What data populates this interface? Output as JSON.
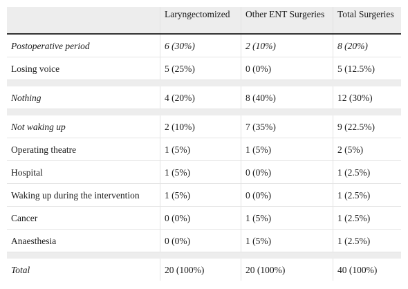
{
  "table": {
    "headers": [
      "",
      "Laryngectomized",
      "Other ENT Surgeries",
      "Total Surgeries"
    ],
    "rows": [
      {
        "kind": "data",
        "italic": true,
        "cells": [
          "Postoperative period",
          "6 (30%)",
          "2 (10%)",
          "8 (20%)"
        ]
      },
      {
        "kind": "data",
        "italic": false,
        "cells": [
          "Losing voice",
          "5 (25%)",
          "0 (0%)",
          "5 (12.5%)"
        ]
      },
      {
        "kind": "gap"
      },
      {
        "kind": "data",
        "italic": true,
        "cells": [
          "Nothing",
          "4 (20%)",
          "8 (40%)",
          "12 (30%)"
        ]
      },
      {
        "kind": "gap"
      },
      {
        "kind": "data",
        "italic": true,
        "cells": [
          "Not waking up",
          "2 (10%)",
          "7 (35%)",
          "9 (22.5%)"
        ]
      },
      {
        "kind": "data",
        "italic": false,
        "cells": [
          "Operating theatre",
          "1 (5%)",
          "1 (5%)",
          "2 (5%)"
        ]
      },
      {
        "kind": "data",
        "italic": false,
        "cells": [
          "Hospital",
          "1 (5%)",
          "0 (0%)",
          "1 (2.5%)"
        ]
      },
      {
        "kind": "data",
        "italic": false,
        "cells": [
          "Waking up during the intervention",
          "1 (5%)",
          "0 (0%)",
          "1 (2.5%)"
        ]
      },
      {
        "kind": "data",
        "italic": false,
        "cells": [
          "Cancer",
          "0 (0%)",
          "1 (5%)",
          "1 (2.5%)"
        ]
      },
      {
        "kind": "data",
        "italic": false,
        "cells": [
          "Anaesthesia",
          "0 (0%)",
          "1 (5%)",
          "1 (2.5%)"
        ]
      },
      {
        "kind": "gap"
      },
      {
        "kind": "data",
        "italic": true,
        "cells": [
          "Total",
          "20 (100%)",
          "20 (100%)",
          "40 (100%)"
        ]
      }
    ]
  }
}
